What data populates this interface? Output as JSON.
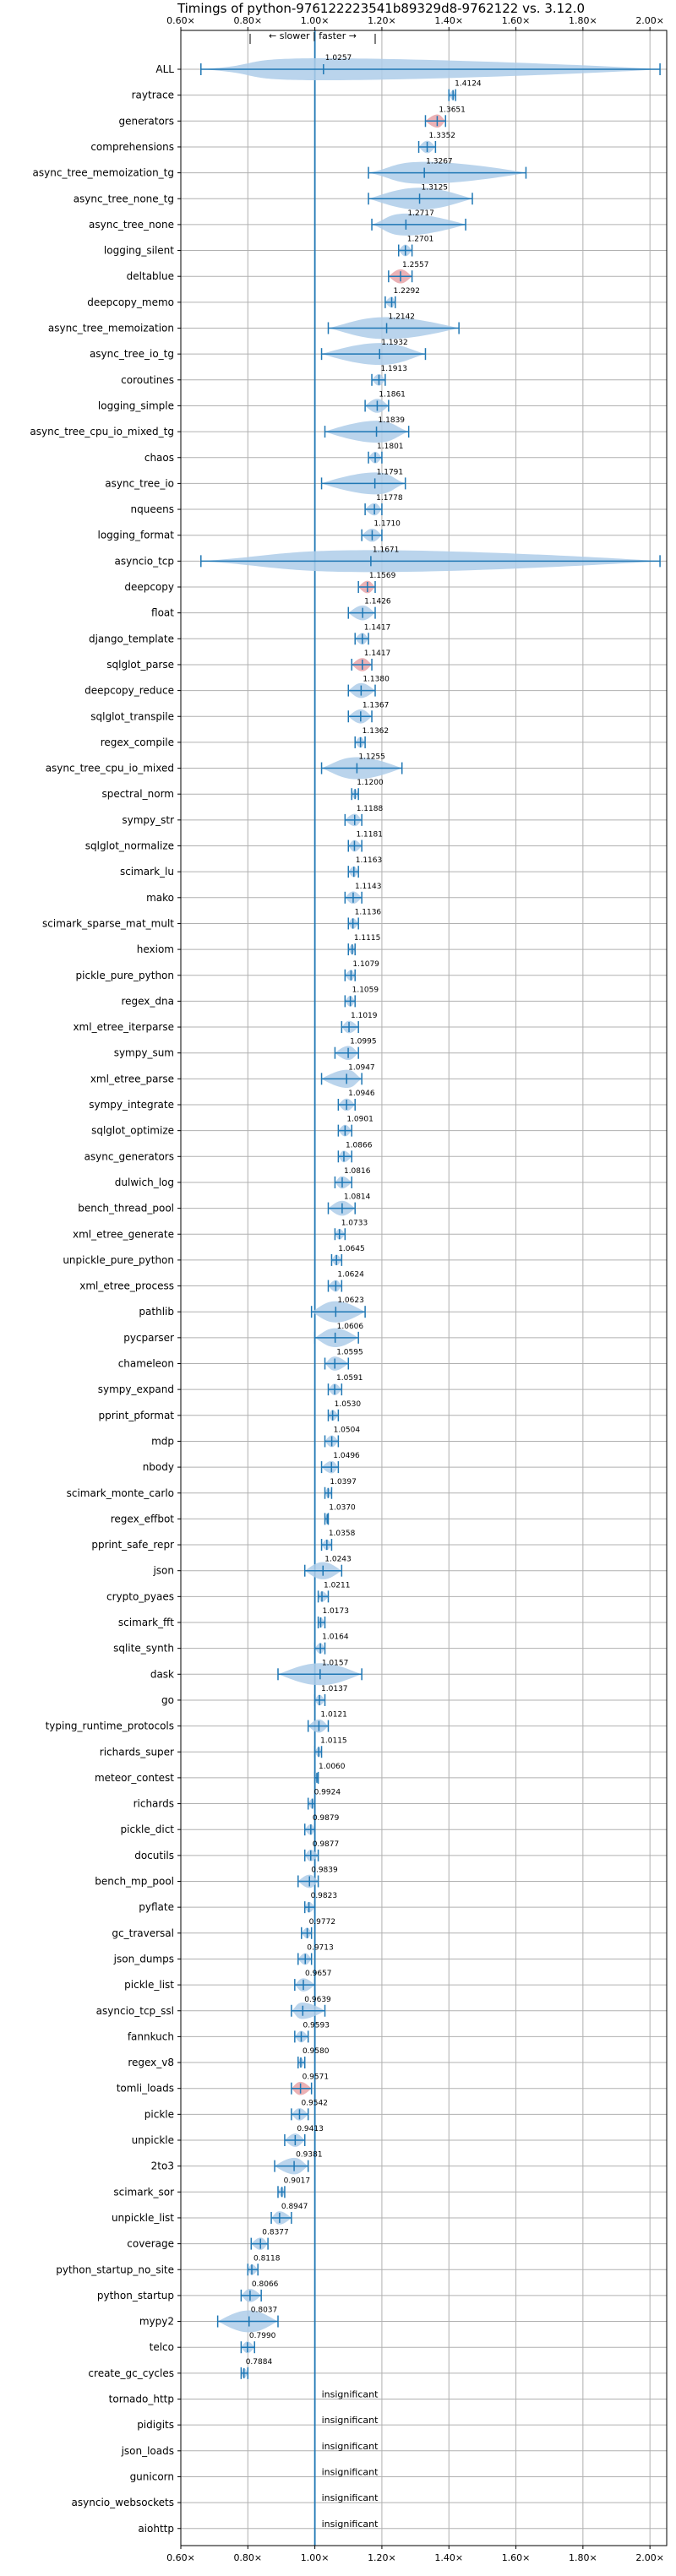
{
  "chart_data": {
    "type": "violin",
    "title": "Timings of python-976122223541b89329d8-9762122 vs. 3.12.0",
    "annotation": "← slower | faster →",
    "xlim": [
      0.6,
      2.05
    ],
    "xticks": [
      0.6,
      0.8,
      1.0,
      1.2,
      1.4,
      1.6,
      1.8,
      2.0
    ],
    "xtick_labels": [
      "0.60×",
      "0.80×",
      "1.00×",
      "1.20×",
      "1.40×",
      "1.60×",
      "1.80×",
      "2.00×"
    ],
    "reference_line": 1.0,
    "grid": true,
    "colors": {
      "body": "#aecde9",
      "line": "#1f77b4",
      "highlight": "#e8a3a8"
    },
    "insignificant_label": "insignificant",
    "benchmarks": [
      {
        "name": "ALL",
        "value": 1.0257,
        "min": 0.66,
        "max": 2.03
      },
      {
        "name": "raytrace",
        "value": 1.4124,
        "min": 1.4,
        "max": 1.42
      },
      {
        "name": "generators",
        "value": 1.3651,
        "min": 1.33,
        "max": 1.39
      },
      {
        "name": "comprehensions",
        "value": 1.3352,
        "min": 1.31,
        "max": 1.36
      },
      {
        "name": "async_tree_memoization_tg",
        "value": 1.3267,
        "min": 1.16,
        "max": 1.63
      },
      {
        "name": "async_tree_none_tg",
        "value": 1.3125,
        "min": 1.16,
        "max": 1.47
      },
      {
        "name": "async_tree_none",
        "value": 1.2717,
        "min": 1.17,
        "max": 1.45
      },
      {
        "name": "logging_silent",
        "value": 1.2701,
        "min": 1.25,
        "max": 1.29
      },
      {
        "name": "deltablue",
        "value": 1.2557,
        "min": 1.22,
        "max": 1.29
      },
      {
        "name": "deepcopy_memo",
        "value": 1.2292,
        "min": 1.21,
        "max": 1.24
      },
      {
        "name": "async_tree_memoization",
        "value": 1.2142,
        "min": 1.04,
        "max": 1.43
      },
      {
        "name": "async_tree_io_tg",
        "value": 1.1932,
        "min": 1.02,
        "max": 1.33
      },
      {
        "name": "coroutines",
        "value": 1.1913,
        "min": 1.17,
        "max": 1.21
      },
      {
        "name": "logging_simple",
        "value": 1.1861,
        "min": 1.15,
        "max": 1.22
      },
      {
        "name": "async_tree_cpu_io_mixed_tg",
        "value": 1.1839,
        "min": 1.03,
        "max": 1.28
      },
      {
        "name": "chaos",
        "value": 1.1801,
        "min": 1.16,
        "max": 1.2
      },
      {
        "name": "async_tree_io",
        "value": 1.1791,
        "min": 1.02,
        "max": 1.27
      },
      {
        "name": "nqueens",
        "value": 1.1778,
        "min": 1.15,
        "max": 1.2
      },
      {
        "name": "logging_format",
        "value": 1.171,
        "min": 1.14,
        "max": 1.2
      },
      {
        "name": "asyncio_tcp",
        "value": 1.1671,
        "min": 0.66,
        "max": 2.03
      },
      {
        "name": "deepcopy",
        "value": 1.1569,
        "min": 1.13,
        "max": 1.18
      },
      {
        "name": "float",
        "value": 1.1426,
        "min": 1.1,
        "max": 1.18
      },
      {
        "name": "django_template",
        "value": 1.1417,
        "min": 1.12,
        "max": 1.16
      },
      {
        "name": "sqlglot_parse",
        "value": 1.1417,
        "min": 1.11,
        "max": 1.17
      },
      {
        "name": "deepcopy_reduce",
        "value": 1.138,
        "min": 1.1,
        "max": 1.18
      },
      {
        "name": "sqlglot_transpile",
        "value": 1.1367,
        "min": 1.1,
        "max": 1.17
      },
      {
        "name": "regex_compile",
        "value": 1.1362,
        "min": 1.12,
        "max": 1.15
      },
      {
        "name": "async_tree_cpu_io_mixed",
        "value": 1.1255,
        "min": 1.02,
        "max": 1.26
      },
      {
        "name": "spectral_norm",
        "value": 1.12,
        "min": 1.11,
        "max": 1.13
      },
      {
        "name": "sympy_str",
        "value": 1.1188,
        "min": 1.09,
        "max": 1.14
      },
      {
        "name": "sqlglot_normalize",
        "value": 1.1181,
        "min": 1.1,
        "max": 1.14
      },
      {
        "name": "scimark_lu",
        "value": 1.1163,
        "min": 1.1,
        "max": 1.13
      },
      {
        "name": "mako",
        "value": 1.1143,
        "min": 1.09,
        "max": 1.14
      },
      {
        "name": "scimark_sparse_mat_mult",
        "value": 1.1136,
        "min": 1.1,
        "max": 1.13
      },
      {
        "name": "hexiom",
        "value": 1.1115,
        "min": 1.1,
        "max": 1.12
      },
      {
        "name": "pickle_pure_python",
        "value": 1.1079,
        "min": 1.09,
        "max": 1.12
      },
      {
        "name": "regex_dna",
        "value": 1.1059,
        "min": 1.09,
        "max": 1.12
      },
      {
        "name": "xml_etree_iterparse",
        "value": 1.1019,
        "min": 1.08,
        "max": 1.13
      },
      {
        "name": "sympy_sum",
        "value": 1.0995,
        "min": 1.06,
        "max": 1.13
      },
      {
        "name": "xml_etree_parse",
        "value": 1.0947,
        "min": 1.02,
        "max": 1.14
      },
      {
        "name": "sympy_integrate",
        "value": 1.0946,
        "min": 1.07,
        "max": 1.12
      },
      {
        "name": "sqlglot_optimize",
        "value": 1.0901,
        "min": 1.07,
        "max": 1.11
      },
      {
        "name": "async_generators",
        "value": 1.0866,
        "min": 1.07,
        "max": 1.11
      },
      {
        "name": "dulwich_log",
        "value": 1.0816,
        "min": 1.06,
        "max": 1.11
      },
      {
        "name": "bench_thread_pool",
        "value": 1.0814,
        "min": 1.04,
        "max": 1.12
      },
      {
        "name": "xml_etree_generate",
        "value": 1.0733,
        "min": 1.06,
        "max": 1.09
      },
      {
        "name": "unpickle_pure_python",
        "value": 1.0645,
        "min": 1.05,
        "max": 1.08
      },
      {
        "name": "xml_etree_process",
        "value": 1.0624,
        "min": 1.04,
        "max": 1.08
      },
      {
        "name": "pathlib",
        "value": 1.0623,
        "min": 0.99,
        "max": 1.15
      },
      {
        "name": "pycparser",
        "value": 1.0606,
        "min": 1.0,
        "max": 1.13
      },
      {
        "name": "chameleon",
        "value": 1.0595,
        "min": 1.03,
        "max": 1.1
      },
      {
        "name": "sympy_expand",
        "value": 1.0591,
        "min": 1.04,
        "max": 1.08
      },
      {
        "name": "pprint_pformat",
        "value": 1.053,
        "min": 1.04,
        "max": 1.07
      },
      {
        "name": "mdp",
        "value": 1.0504,
        "min": 1.03,
        "max": 1.07
      },
      {
        "name": "nbody",
        "value": 1.0496,
        "min": 1.02,
        "max": 1.07
      },
      {
        "name": "scimark_monte_carlo",
        "value": 1.0397,
        "min": 1.03,
        "max": 1.05
      },
      {
        "name": "regex_effbot",
        "value": 1.037,
        "min": 1.03,
        "max": 1.04
      },
      {
        "name": "pprint_safe_repr",
        "value": 1.0358,
        "min": 1.02,
        "max": 1.05
      },
      {
        "name": "json",
        "value": 1.0243,
        "min": 0.97,
        "max": 1.08
      },
      {
        "name": "crypto_pyaes",
        "value": 1.0211,
        "min": 1.01,
        "max": 1.04
      },
      {
        "name": "scimark_fft",
        "value": 1.0173,
        "min": 1.01,
        "max": 1.03
      },
      {
        "name": "sqlite_synth",
        "value": 1.0164,
        "min": 1.0,
        "max": 1.03
      },
      {
        "name": "dask",
        "value": 1.0157,
        "min": 0.89,
        "max": 1.14
      },
      {
        "name": "go",
        "value": 1.0137,
        "min": 1.0,
        "max": 1.03
      },
      {
        "name": "typing_runtime_protocols",
        "value": 1.0121,
        "min": 0.98,
        "max": 1.04
      },
      {
        "name": "richards_super",
        "value": 1.0115,
        "min": 1.0,
        "max": 1.02
      },
      {
        "name": "meteor_contest",
        "value": 1.006,
        "min": 1.0,
        "max": 1.01
      },
      {
        "name": "richards",
        "value": 0.9924,
        "min": 0.98,
        "max": 1.0
      },
      {
        "name": "pickle_dict",
        "value": 0.9879,
        "min": 0.97,
        "max": 1.0
      },
      {
        "name": "docutils",
        "value": 0.9877,
        "min": 0.97,
        "max": 1.01
      },
      {
        "name": "bench_mp_pool",
        "value": 0.9839,
        "min": 0.95,
        "max": 1.01
      },
      {
        "name": "pyflate",
        "value": 0.9823,
        "min": 0.97,
        "max": 1.0
      },
      {
        "name": "gc_traversal",
        "value": 0.9772,
        "min": 0.96,
        "max": 0.99
      },
      {
        "name": "json_dumps",
        "value": 0.9713,
        "min": 0.95,
        "max": 0.99
      },
      {
        "name": "pickle_list",
        "value": 0.9657,
        "min": 0.94,
        "max": 1.0
      },
      {
        "name": "asyncio_tcp_ssl",
        "value": 0.9639,
        "min": 0.93,
        "max": 1.03
      },
      {
        "name": "fannkuch",
        "value": 0.9593,
        "min": 0.94,
        "max": 0.98
      },
      {
        "name": "regex_v8",
        "value": 0.958,
        "min": 0.95,
        "max": 0.97
      },
      {
        "name": "tomli_loads",
        "value": 0.9571,
        "min": 0.93,
        "max": 0.99
      },
      {
        "name": "pickle",
        "value": 0.9542,
        "min": 0.93,
        "max": 0.98
      },
      {
        "name": "unpickle",
        "value": 0.9413,
        "min": 0.91,
        "max": 0.97
      },
      {
        "name": "2to3",
        "value": 0.9381,
        "min": 0.88,
        "max": 0.98
      },
      {
        "name": "scimark_sor",
        "value": 0.9017,
        "min": 0.89,
        "max": 0.91
      },
      {
        "name": "unpickle_list",
        "value": 0.8947,
        "min": 0.87,
        "max": 0.93
      },
      {
        "name": "coverage",
        "value": 0.8377,
        "min": 0.81,
        "max": 0.86
      },
      {
        "name": "python_startup_no_site",
        "value": 0.8118,
        "min": 0.8,
        "max": 0.83
      },
      {
        "name": "python_startup",
        "value": 0.8066,
        "min": 0.78,
        "max": 0.84
      },
      {
        "name": "mypy2",
        "value": 0.8037,
        "min": 0.71,
        "max": 0.89
      },
      {
        "name": "telco",
        "value": 0.799,
        "min": 0.78,
        "max": 0.82
      },
      {
        "name": "create_gc_cycles",
        "value": 0.7884,
        "min": 0.78,
        "max": 0.8
      },
      {
        "name": "tornado_http",
        "insignificant": true
      },
      {
        "name": "pidigits",
        "insignificant": true
      },
      {
        "name": "json_loads",
        "insignificant": true
      },
      {
        "name": "gunicorn",
        "insignificant": true
      },
      {
        "name": "asyncio_websockets",
        "insignificant": true
      },
      {
        "name": "aiohttp",
        "insignificant": true
      }
    ]
  }
}
